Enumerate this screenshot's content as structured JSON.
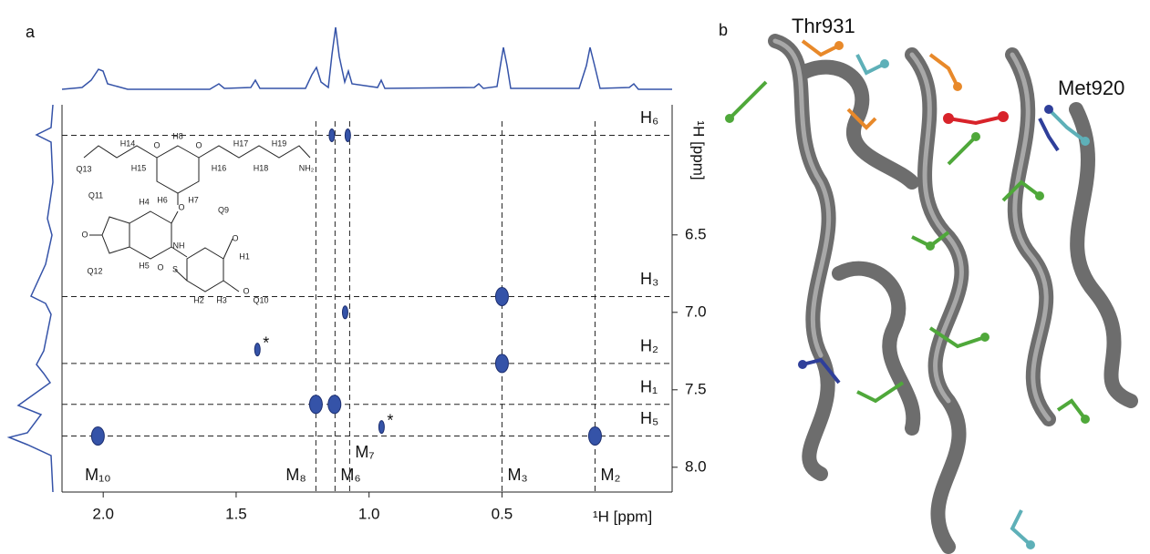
{
  "chart_data": {
    "type": "scatter",
    "panel": "a",
    "x_label": "¹H [ppm]",
    "y_label": "¹H [ppm]",
    "xlim": [
      2.155,
      -0.14
    ],
    "ylim": [
      5.66,
      8.16
    ],
    "xticks": [
      {
        "value": 2,
        "label": "2.0"
      },
      1.5,
      {
        "value": 1,
        "label": "1.0"
      },
      0.5
    ],
    "yticks": [
      6.5,
      {
        "value": 7,
        "label": "7.0"
      },
      7.5,
      {
        "value": 8,
        "label": "8.0"
      }
    ],
    "color": "#3553a8",
    "x": [
      1.14,
      1.08,
      0.5,
      1.09,
      0.5,
      1.42,
      1.2,
      1.13,
      0.953,
      2.02,
      0.15
    ],
    "y": [
      5.857,
      5.857,
      6.898,
      7.0,
      7.33,
      7.24,
      7.594,
      7.594,
      7.74,
      7.798,
      7.798
    ],
    "h_lines": [
      {
        "label": "H₆",
        "y": 5.857
      },
      {
        "label": "H₃",
        "y": 6.898
      },
      {
        "label": "H₂",
        "y": 7.33
      },
      {
        "label": "H₁",
        "y": 7.594
      },
      {
        "label": "H₅",
        "y": 7.798
      }
    ],
    "v_lines": [
      {
        "label": "M₁₀",
        "x": 2.02,
        "dashed": false
      },
      {
        "label": "M₈",
        "x": 1.2,
        "dashed": true
      },
      {
        "label": "M₆",
        "x": 1.128,
        "dashed": true
      },
      {
        "label": "M₇",
        "x": 1.073,
        "dashed": true
      },
      {
        "label": "M₃",
        "x": 0.5,
        "dashed": true
      },
      {
        "label": "M₂",
        "x": 0.15,
        "dashed": true
      }
    ],
    "annotations": [
      {
        "text": "*",
        "x": 1.42,
        "y": 7.24
      },
      {
        "text": "*",
        "x": 0.953,
        "y": 7.74
      }
    ],
    "structure_labels": [
      "H14",
      "Q13",
      "H15",
      "H8",
      "H6",
      "H7",
      "H17",
      "H16",
      "H19",
      "H18",
      "NH₂",
      "O",
      "O",
      "O",
      "Q11",
      "H4",
      "Q9",
      "O",
      "NH",
      "H1",
      "H5",
      "Q12",
      "O",
      "S",
      "O",
      "O",
      "H2",
      "H3",
      "Q10"
    ]
  },
  "panel_b": {
    "label": "b",
    "residues": [
      "Thr931",
      "Met920"
    ]
  }
}
